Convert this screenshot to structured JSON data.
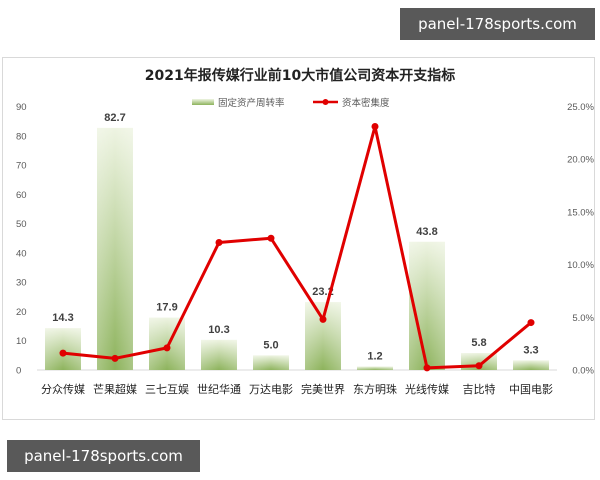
{
  "watermarks": {
    "top": "panel-178sports.com",
    "bottom": "panel-178sports.com"
  },
  "chart_data": {
    "type": "bar",
    "title": "2021年报传媒行业前10大市值公司资本开支指标",
    "categories": [
      "分众传媒",
      "芒果超媒",
      "三七互娱",
      "世纪华通",
      "万达电影",
      "完美世界",
      "东方明珠",
      "光线传媒",
      "吉比特",
      "中国电影"
    ],
    "series": [
      {
        "name": "固定资产周转率",
        "type": "bar",
        "axis": "left",
        "color": "#8db35c",
        "values": [
          14.3,
          82.7,
          17.9,
          10.3,
          5.0,
          23.2,
          1.2,
          43.8,
          5.8,
          3.3
        ],
        "labels": [
          "14.3",
          "82.7",
          "17.9",
          "10.3",
          "5.0",
          "23.2",
          "1.2",
          "43.8",
          "5.8",
          "3.3"
        ]
      },
      {
        "name": "资本密集度",
        "type": "line",
        "axis": "right",
        "color": "#e00000",
        "values": [
          0.016,
          0.011,
          0.021,
          0.121,
          0.125,
          0.048,
          0.231,
          0.002,
          0.004,
          0.045
        ]
      }
    ],
    "xlabel": "",
    "ylabel": "",
    "ylim": [
      0,
      90
    ],
    "y_ticks": [
      "0",
      "10",
      "20",
      "30",
      "40",
      "50",
      "60",
      "70",
      "80",
      "90"
    ],
    "y2lim": [
      0,
      0.25
    ],
    "y2_ticks": [
      "0.0%",
      "5.0%",
      "10.0%",
      "15.0%",
      "20.0%",
      "25.0%"
    ],
    "legend": [
      "固定资产周转率",
      "资本密集度"
    ],
    "legend_position": "top",
    "grid": false
  }
}
